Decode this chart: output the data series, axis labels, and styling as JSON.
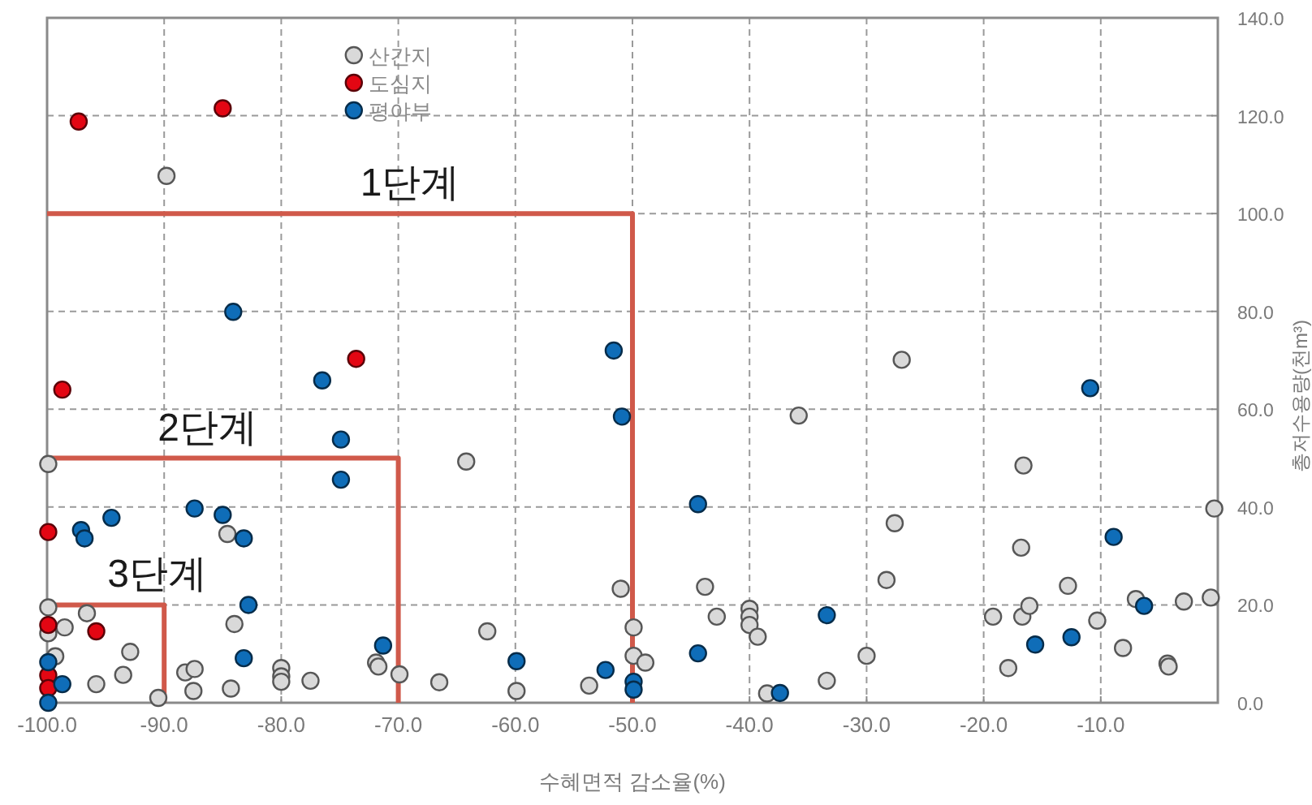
{
  "chart_data": {
    "type": "scatter",
    "xlabel": "수혜면적 감소율(%)",
    "ylabel": "총저수용량(천m³)",
    "xlim": [
      -100,
      0
    ],
    "ylim": [
      0,
      140
    ],
    "xticks": [
      {
        "value": -100,
        "label": "-100.0"
      },
      {
        "value": -90,
        "label": "-90.0"
      },
      {
        "value": -80,
        "label": "-80.0"
      },
      {
        "value": -70,
        "label": "-70.0"
      },
      {
        "value": -60,
        "label": "-60.0"
      },
      {
        "value": -50,
        "label": "-50.0"
      },
      {
        "value": -40,
        "label": "-40.0"
      },
      {
        "value": -30,
        "label": "-30.0"
      },
      {
        "value": -20,
        "label": "-20.0"
      },
      {
        "value": -10,
        "label": "-10.0"
      }
    ],
    "yticks": [
      {
        "value": 0,
        "label": "0.0"
      },
      {
        "value": 20,
        "label": "20.0"
      },
      {
        "value": 40,
        "label": "40.0"
      },
      {
        "value": 60,
        "label": "60.0"
      },
      {
        "value": 80,
        "label": "80.0"
      },
      {
        "value": 100,
        "label": "100.0"
      },
      {
        "value": 120,
        "label": "120.0"
      },
      {
        "value": 140,
        "label": "140.0"
      }
    ],
    "grid": true,
    "legend": "top left",
    "annotations": [
      {
        "text": "1단계",
        "x": -69,
        "y": 100
      },
      {
        "text": "2단계",
        "x": -86.3,
        "y": 50
      },
      {
        "text": "3단계",
        "x": -90.6,
        "y": 20
      }
    ],
    "series": [
      {
        "type": "line",
        "marker": "none",
        "color": "#d0594a",
        "x": [
          -100,
          -50,
          -50
        ],
        "values": [
          100,
          100,
          0
        ]
      },
      {
        "type": "line",
        "marker": "none",
        "color": "#d0594a",
        "x": [
          -100,
          -70,
          -70
        ],
        "values": [
          50,
          50,
          0
        ]
      },
      {
        "type": "line",
        "marker": "none",
        "color": "#d0594a",
        "x": [
          -100,
          -90,
          -90
        ],
        "values": [
          20,
          20,
          0
        ]
      },
      {
        "name": "산간지",
        "marker": "circle",
        "color": "#d9d9d9",
        "x": [
          -89.8,
          -99.9,
          -84.6,
          -84.0,
          -99.9,
          -99.9,
          -98.5,
          -96.6,
          -92.9,
          -93.5,
          -95.8,
          -99.3,
          -90.5,
          -88.2,
          -87.4,
          -87.5,
          -84.3,
          -80.0,
          -80.0,
          -80.0,
          -77.5,
          -71.9,
          -71.7,
          -69.9,
          -66.5,
          -64.2,
          -62.4,
          -59.9,
          -53.7,
          -51.0,
          -49.9,
          -49.9,
          -48.9,
          -43.8,
          -42.8,
          -40.0,
          -40.0,
          -40.0,
          -39.3,
          -38.5,
          -35.8,
          -33.4,
          -30.0,
          -28.3,
          -27.6,
          -27.0,
          -19.2,
          -17.9,
          -16.8,
          -16.7,
          -16.6,
          -16.1,
          -12.8,
          -10.3,
          -8.1,
          -7.0,
          -4.3,
          -4.2,
          -2.9,
          -0.6,
          -0.3
        ],
        "values": [
          107.7,
          48.8,
          34.5,
          16.1,
          19.5,
          14.2,
          15.4,
          18.3,
          10.4,
          5.7,
          3.8,
          9.5,
          1.0,
          6.2,
          6.9,
          2.4,
          2.9,
          7.1,
          5.4,
          4.3,
          4.5,
          8.2,
          7.4,
          5.8,
          4.2,
          49.3,
          14.6,
          2.4,
          3.5,
          23.3,
          15.4,
          9.6,
          8.2,
          23.7,
          17.6,
          19.2,
          17.6,
          15.9,
          13.5,
          1.9,
          58.7,
          4.5,
          9.6,
          25.1,
          36.7,
          70.1,
          17.6,
          7.1,
          31.7,
          17.6,
          48.5,
          19.8,
          23.9,
          16.8,
          11.2,
          21.2,
          8.0,
          7.4,
          20.7,
          21.5,
          39.7
        ]
      },
      {
        "name": "도심지",
        "marker": "circle",
        "color": "#e30613",
        "x": [
          -97.3,
          -85.0,
          -98.7,
          -73.6,
          -99.9,
          -99.9,
          -95.8,
          -99.9,
          -99.9
        ],
        "values": [
          118.8,
          121.5,
          64.0,
          70.3,
          34.9,
          15.9,
          14.6,
          5.6,
          3.0
        ]
      },
      {
        "name": "평야부",
        "marker": "circle",
        "color": "#0f6db8",
        "x": [
          -84.1,
          -76.5,
          -74.9,
          -74.9,
          -97.1,
          -96.8,
          -94.5,
          -87.4,
          -85.0,
          -83.2,
          -82.8,
          -83.2,
          -98.7,
          -99.9,
          -99.9,
          -71.3,
          -51.6,
          -50.9,
          -44.4,
          -33.4,
          -59.9,
          -52.3,
          -49.9,
          -49.9,
          -44.4,
          -37.4,
          -10.9,
          -8.9,
          -6.3,
          -15.6,
          -12.5
        ],
        "values": [
          79.9,
          65.9,
          53.8,
          45.6,
          35.3,
          33.6,
          37.8,
          39.7,
          38.4,
          33.6,
          20.0,
          9.1,
          3.8,
          8.3,
          0.0,
          11.7,
          72.0,
          58.5,
          40.6,
          17.9,
          8.5,
          6.7,
          4.3,
          2.7,
          10.1,
          2.0,
          64.3,
          33.9,
          19.8,
          11.9,
          13.4
        ]
      }
    ]
  }
}
